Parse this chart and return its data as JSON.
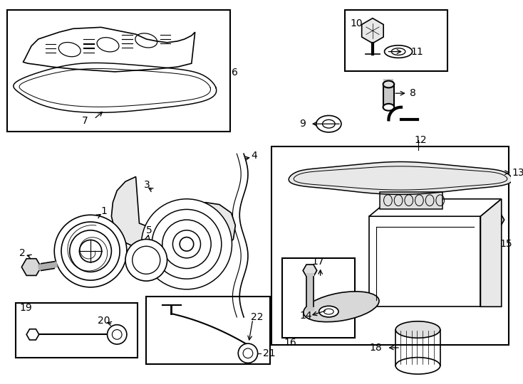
{
  "bg_color": "#ffffff",
  "line_color": "#000000",
  "figsize": [
    7.34,
    5.4
  ],
  "dpi": 100,
  "xlim": [
    0,
    734
  ],
  "ylim": [
    0,
    540
  ]
}
